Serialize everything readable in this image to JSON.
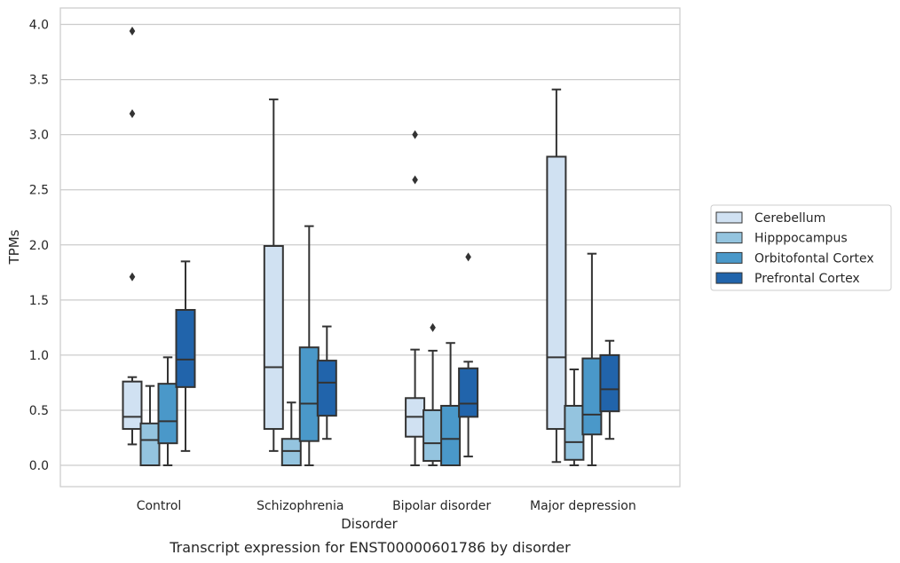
{
  "chart_data": {
    "type": "box",
    "xlabel": "Disorder",
    "ylabel": "TPMs",
    "caption": "Transcript expression for ENST00000601786 by disorder",
    "ylim": [
      -0.19,
      4.15
    ],
    "yticks": [
      "0.0",
      "0.5",
      "1.0",
      "1.5",
      "2.0",
      "2.5",
      "3.0",
      "3.5",
      "4.0"
    ],
    "grid": "horizontal",
    "legend_position": "right",
    "categories": [
      "Control",
      "Schizophrenia",
      "Bipolar disorder",
      "Major depression"
    ],
    "series": [
      {
        "name": "Cerebellum",
        "color": "#d0e1f2",
        "boxes": [
          {
            "whislo": 0.19,
            "q1": 0.33,
            "med": 0.44,
            "q3": 0.76,
            "whishi": 0.8,
            "fliers": [
              1.71,
              3.19,
              3.94
            ]
          },
          {
            "whislo": 0.13,
            "q1": 0.33,
            "med": 0.89,
            "q3": 1.99,
            "whishi": 3.32,
            "fliers": []
          },
          {
            "whislo": 0.0,
            "q1": 0.26,
            "med": 0.44,
            "q3": 0.61,
            "whishi": 1.05,
            "fliers": [
              2.59,
              3.0
            ]
          },
          {
            "whislo": 0.03,
            "q1": 0.33,
            "med": 0.98,
            "q3": 2.8,
            "whishi": 3.41,
            "fliers": []
          }
        ]
      },
      {
        "name": "Hipppocampus",
        "color": "#94c4df",
        "boxes": [
          {
            "whislo": 0.0,
            "q1": 0.0,
            "med": 0.23,
            "q3": 0.38,
            "whishi": 0.72,
            "fliers": []
          },
          {
            "whislo": 0.0,
            "q1": 0.0,
            "med": 0.13,
            "q3": 0.24,
            "whishi": 0.57,
            "fliers": []
          },
          {
            "whislo": 0.0,
            "q1": 0.04,
            "med": 0.2,
            "q3": 0.5,
            "whishi": 1.04,
            "fliers": [
              1.25
            ]
          },
          {
            "whislo": 0.0,
            "q1": 0.05,
            "med": 0.21,
            "q3": 0.54,
            "whishi": 0.87,
            "fliers": []
          }
        ]
      },
      {
        "name": "Orbitofontal Cortex",
        "color": "#4a98c9",
        "boxes": [
          {
            "whislo": 0.0,
            "q1": 0.2,
            "med": 0.4,
            "q3": 0.74,
            "whishi": 0.98,
            "fliers": []
          },
          {
            "whislo": 0.0,
            "q1": 0.22,
            "med": 0.56,
            "q3": 1.07,
            "whishi": 2.17,
            "fliers": []
          },
          {
            "whislo": 0.0,
            "q1": 0.0,
            "med": 0.24,
            "q3": 0.54,
            "whishi": 1.11,
            "fliers": []
          },
          {
            "whislo": 0.0,
            "q1": 0.28,
            "med": 0.46,
            "q3": 0.97,
            "whishi": 1.92,
            "fliers": []
          }
        ]
      },
      {
        "name": "Prefrontal Cortex",
        "color": "#2164ab",
        "boxes": [
          {
            "whislo": 0.13,
            "q1": 0.71,
            "med": 0.96,
            "q3": 1.41,
            "whishi": 1.85,
            "fliers": []
          },
          {
            "whislo": 0.24,
            "q1": 0.45,
            "med": 0.75,
            "q3": 0.95,
            "whishi": 1.26,
            "fliers": []
          },
          {
            "whislo": 0.08,
            "q1": 0.44,
            "med": 0.56,
            "q3": 0.88,
            "whishi": 0.94,
            "fliers": [
              1.89
            ]
          },
          {
            "whislo": 0.24,
            "q1": 0.49,
            "med": 0.69,
            "q3": 1.0,
            "whishi": 1.13,
            "fliers": []
          }
        ]
      }
    ]
  }
}
